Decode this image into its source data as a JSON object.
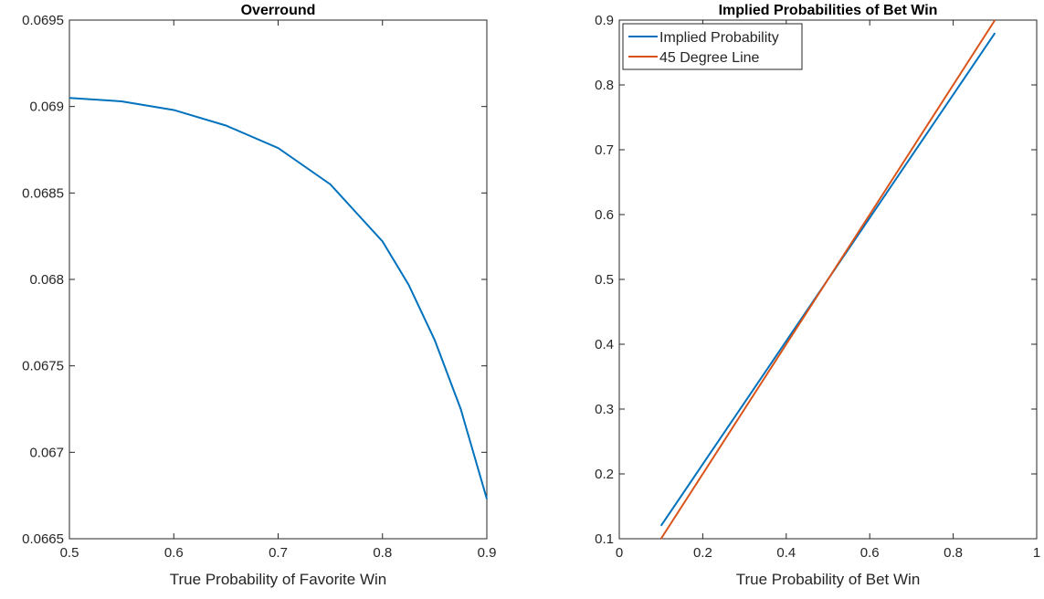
{
  "chart_data": [
    {
      "type": "line",
      "title": "Overround",
      "xlabel": "True Probability of Favorite Win",
      "x": [
        0.5,
        0.55,
        0.6,
        0.65,
        0.7,
        0.75,
        0.8,
        0.825,
        0.85,
        0.875,
        0.9
      ],
      "series": [
        {
          "name": null,
          "color": "#0072bd",
          "values": [
            0.06905,
            0.06903,
            0.06898,
            0.06889,
            0.06876,
            0.06855,
            0.06822,
            0.06797,
            0.06765,
            0.06725,
            0.06673
          ]
        }
      ],
      "xlim": [
        0.5,
        0.9
      ],
      "xticks": [
        0.5,
        0.6,
        0.7,
        0.8,
        0.9
      ],
      "ylim": [
        0.0665,
        0.0695
      ],
      "yticks": [
        0.0665,
        0.067,
        0.0675,
        0.068,
        0.0685,
        0.069,
        0.0695
      ]
    },
    {
      "type": "line",
      "title": "Implied Probabilities of Bet Win",
      "xlabel": "True Probability of Bet Win",
      "x": [
        0.1,
        0.2,
        0.3,
        0.4,
        0.5,
        0.6,
        0.7,
        0.8,
        0.9
      ],
      "series": [
        {
          "name": "Implied Probability",
          "color": "#0072bd",
          "values": [
            0.12,
            0.215,
            0.31,
            0.405,
            0.5,
            0.595,
            0.69,
            0.785,
            0.88
          ]
        },
        {
          "name": "45 Degree Line",
          "color": "#d95319",
          "values": [
            0.1,
            0.2,
            0.3,
            0.4,
            0.5,
            0.6,
            0.7,
            0.8,
            0.9
          ]
        }
      ],
      "xlim": [
        0,
        1
      ],
      "xticks": [
        0,
        0.2,
        0.4,
        0.6,
        0.8,
        1
      ],
      "ylim": [
        0.1,
        0.9
      ],
      "yticks": [
        0.1,
        0.2,
        0.3,
        0.4,
        0.5,
        0.6,
        0.7,
        0.8,
        0.9
      ],
      "legend": "upper left"
    }
  ]
}
